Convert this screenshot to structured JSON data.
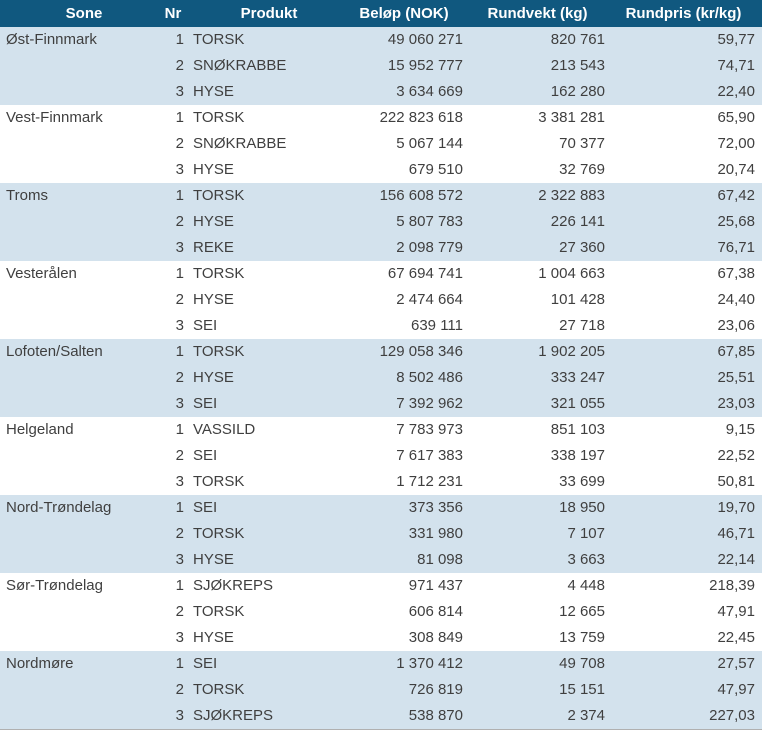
{
  "colors": {
    "header_bg": "#10587f",
    "alt_row_bg": "#d3e2ed",
    "text": "#3f3f3f",
    "header_text": "#ffffff",
    "bottom_border": "#b0b0b0"
  },
  "table": {
    "columns": [
      {
        "label": "Sone"
      },
      {
        "label": "Nr"
      },
      {
        "label": "Produkt"
      },
      {
        "label": "Beløp (NOK)"
      },
      {
        "label": "Rundvekt (kg)"
      },
      {
        "label": "Rundpris (kr/kg)"
      }
    ],
    "groups": [
      {
        "sone": "Øst-Finnmark",
        "rows": [
          {
            "nr": "1",
            "produkt": "TORSK",
            "belop": "49 060 271",
            "rundvekt": "820 761",
            "rundpris": "59,77"
          },
          {
            "nr": "2",
            "produkt": "SNØKRABBE",
            "belop": "15 952 777",
            "rundvekt": "213 543",
            "rundpris": "74,71"
          },
          {
            "nr": "3",
            "produkt": "HYSE",
            "belop": "3 634 669",
            "rundvekt": "162 280",
            "rundpris": "22,40"
          }
        ]
      },
      {
        "sone": "Vest-Finnmark",
        "rows": [
          {
            "nr": "1",
            "produkt": "TORSK",
            "belop": "222 823 618",
            "rundvekt": "3 381 281",
            "rundpris": "65,90"
          },
          {
            "nr": "2",
            "produkt": "SNØKRABBE",
            "belop": "5 067 144",
            "rundvekt": "70 377",
            "rundpris": "72,00"
          },
          {
            "nr": "3",
            "produkt": "HYSE",
            "belop": "679 510",
            "rundvekt": "32 769",
            "rundpris": "20,74"
          }
        ]
      },
      {
        "sone": "Troms",
        "rows": [
          {
            "nr": "1",
            "produkt": "TORSK",
            "belop": "156 608 572",
            "rundvekt": "2 322 883",
            "rundpris": "67,42"
          },
          {
            "nr": "2",
            "produkt": "HYSE",
            "belop": "5 807 783",
            "rundvekt": "226 141",
            "rundpris": "25,68"
          },
          {
            "nr": "3",
            "produkt": "REKE",
            "belop": "2 098 779",
            "rundvekt": "27 360",
            "rundpris": "76,71"
          }
        ]
      },
      {
        "sone": "Vesterålen",
        "rows": [
          {
            "nr": "1",
            "produkt": "TORSK",
            "belop": "67 694 741",
            "rundvekt": "1 004 663",
            "rundpris": "67,38"
          },
          {
            "nr": "2",
            "produkt": "HYSE",
            "belop": "2 474 664",
            "rundvekt": "101 428",
            "rundpris": "24,40"
          },
          {
            "nr": "3",
            "produkt": "SEI",
            "belop": "639 111",
            "rundvekt": "27 718",
            "rundpris": "23,06"
          }
        ]
      },
      {
        "sone": "Lofoten/Salten",
        "rows": [
          {
            "nr": "1",
            "produkt": "TORSK",
            "belop": "129 058 346",
            "rundvekt": "1 902 205",
            "rundpris": "67,85"
          },
          {
            "nr": "2",
            "produkt": "HYSE",
            "belop": "8 502 486",
            "rundvekt": "333 247",
            "rundpris": "25,51"
          },
          {
            "nr": "3",
            "produkt": "SEI",
            "belop": "7 392 962",
            "rundvekt": "321 055",
            "rundpris": "23,03"
          }
        ]
      },
      {
        "sone": "Helgeland",
        "rows": [
          {
            "nr": "1",
            "produkt": "VASSILD",
            "belop": "7 783 973",
            "rundvekt": "851 103",
            "rundpris": "9,15"
          },
          {
            "nr": "2",
            "produkt": "SEI",
            "belop": "7 617 383",
            "rundvekt": "338 197",
            "rundpris": "22,52"
          },
          {
            "nr": "3",
            "produkt": "TORSK",
            "belop": "1 712 231",
            "rundvekt": "33 699",
            "rundpris": "50,81"
          }
        ]
      },
      {
        "sone": "Nord-Trøndelag",
        "rows": [
          {
            "nr": "1",
            "produkt": "SEI",
            "belop": "373 356",
            "rundvekt": "18 950",
            "rundpris": "19,70"
          },
          {
            "nr": "2",
            "produkt": "TORSK",
            "belop": "331 980",
            "rundvekt": "7 107",
            "rundpris": "46,71"
          },
          {
            "nr": "3",
            "produkt": "HYSE",
            "belop": "81 098",
            "rundvekt": "3 663",
            "rundpris": "22,14"
          }
        ]
      },
      {
        "sone": "Sør-Trøndelag",
        "rows": [
          {
            "nr": "1",
            "produkt": "SJØKREPS",
            "belop": "971 437",
            "rundvekt": "4 448",
            "rundpris": "218,39"
          },
          {
            "nr": "2",
            "produkt": "TORSK",
            "belop": "606 814",
            "rundvekt": "12 665",
            "rundpris": "47,91"
          },
          {
            "nr": "3",
            "produkt": "HYSE",
            "belop": "308 849",
            "rundvekt": "13 759",
            "rundpris": "22,45"
          }
        ]
      },
      {
        "sone": "Nordmøre",
        "rows": [
          {
            "nr": "1",
            "produkt": "SEI",
            "belop": "1 370 412",
            "rundvekt": "49 708",
            "rundpris": "27,57"
          },
          {
            "nr": "2",
            "produkt": "TORSK",
            "belop": "726 819",
            "rundvekt": "15 151",
            "rundpris": "47,97"
          },
          {
            "nr": "3",
            "produkt": "SJØKREPS",
            "belop": "538 870",
            "rundvekt": "2 374",
            "rundpris": "227,03"
          }
        ]
      }
    ]
  },
  "chart_data": {
    "type": "table",
    "title": "",
    "columns": [
      "Sone",
      "Nr",
      "Produkt",
      "Beløp (NOK)",
      "Rundvekt (kg)",
      "Rundpris (kr/kg)"
    ],
    "rows": [
      [
        "Øst-Finnmark",
        1,
        "TORSK",
        49060271,
        820761,
        59.77
      ],
      [
        "Øst-Finnmark",
        2,
        "SNØKRABBE",
        15952777,
        213543,
        74.71
      ],
      [
        "Øst-Finnmark",
        3,
        "HYSE",
        3634669,
        162280,
        22.4
      ],
      [
        "Vest-Finnmark",
        1,
        "TORSK",
        222823618,
        3381281,
        65.9
      ],
      [
        "Vest-Finnmark",
        2,
        "SNØKRABBE",
        5067144,
        70377,
        72.0
      ],
      [
        "Vest-Finnmark",
        3,
        "HYSE",
        679510,
        32769,
        20.74
      ],
      [
        "Troms",
        1,
        "TORSK",
        156608572,
        2322883,
        67.42
      ],
      [
        "Troms",
        2,
        "HYSE",
        5807783,
        226141,
        25.68
      ],
      [
        "Troms",
        3,
        "REKE",
        2098779,
        27360,
        76.71
      ],
      [
        "Vesterålen",
        1,
        "TORSK",
        67694741,
        1004663,
        67.38
      ],
      [
        "Vesterålen",
        2,
        "HYSE",
        2474664,
        101428,
        24.4
      ],
      [
        "Vesterålen",
        3,
        "SEI",
        639111,
        27718,
        23.06
      ],
      [
        "Lofoten/Salten",
        1,
        "TORSK",
        129058346,
        1902205,
        67.85
      ],
      [
        "Lofoten/Salten",
        2,
        "HYSE",
        8502486,
        333247,
        25.51
      ],
      [
        "Lofoten/Salten",
        3,
        "SEI",
        7392962,
        321055,
        23.03
      ],
      [
        "Helgeland",
        1,
        "VASSILD",
        7783973,
        851103,
        9.15
      ],
      [
        "Helgeland",
        2,
        "SEI",
        7617383,
        338197,
        22.52
      ],
      [
        "Helgeland",
        3,
        "TORSK",
        1712231,
        33699,
        50.81
      ],
      [
        "Nord-Trøndelag",
        1,
        "SEI",
        373356,
        18950,
        19.7
      ],
      [
        "Nord-Trøndelag",
        2,
        "TORSK",
        331980,
        7107,
        46.71
      ],
      [
        "Nord-Trøndelag",
        3,
        "HYSE",
        81098,
        3663,
        22.14
      ],
      [
        "Sør-Trøndelag",
        1,
        "SJØKREPS",
        971437,
        4448,
        218.39
      ],
      [
        "Sør-Trøndelag",
        2,
        "TORSK",
        606814,
        12665,
        47.91
      ],
      [
        "Sør-Trøndelag",
        3,
        "HYSE",
        308849,
        13759,
        22.45
      ],
      [
        "Nordmøre",
        1,
        "SEI",
        1370412,
        49708,
        27.57
      ],
      [
        "Nordmøre",
        2,
        "TORSK",
        726819,
        15151,
        47.97
      ],
      [
        "Nordmøre",
        3,
        "SJØKREPS",
        538870,
        2374,
        227.03
      ]
    ]
  }
}
